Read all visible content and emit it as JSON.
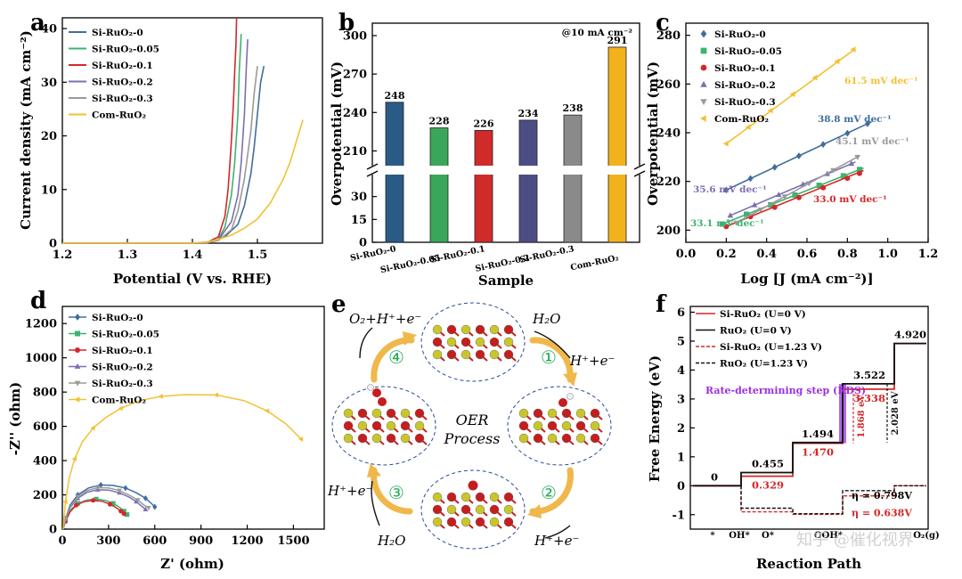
{
  "chart_data": [
    {
      "panel": "a",
      "type": "line",
      "xlabel": "Potential (V vs. RHE)",
      "ylabel": "Current density (mA cm⁻²)",
      "xlim": [
        1.2,
        1.6
      ],
      "ylim": [
        0,
        42
      ],
      "xticks": [
        1.2,
        1.3,
        1.4,
        1.5
      ],
      "yticks": [
        0,
        10,
        20,
        30,
        40
      ],
      "series": [
        {
          "name": "Si-RuO₂-0",
          "color": "#3f6e9e",
          "x": [
            1.2,
            1.4,
            1.43,
            1.45,
            1.47,
            1.48,
            1.49,
            1.495,
            1.5,
            1.505,
            1.51
          ],
          "y": [
            0,
            0,
            0.3,
            1.2,
            3.5,
            7,
            13,
            18,
            24,
            30,
            33
          ]
        },
        {
          "name": "Si-RuO₂-0.05",
          "color": "#3cb371",
          "x": [
            1.2,
            1.42,
            1.44,
            1.45,
            1.46,
            1.465,
            1.47,
            1.472,
            1.475
          ],
          "y": [
            0,
            0,
            0.8,
            3,
            9,
            15,
            24,
            32,
            39
          ]
        },
        {
          "name": "Si-RuO₂-0.1",
          "color": "#d62728",
          "x": [
            1.2,
            1.42,
            1.44,
            1.45,
            1.455,
            1.46,
            1.463,
            1.465,
            1.467,
            1.468
          ],
          "y": [
            0,
            0,
            1.2,
            5,
            10,
            19,
            26,
            32,
            37,
            42
          ]
        },
        {
          "name": "Si-RuO₂-0.2",
          "color": "#7b6fb0",
          "x": [
            1.2,
            1.42,
            1.44,
            1.46,
            1.47,
            1.475,
            1.48,
            1.483,
            1.485
          ],
          "y": [
            0,
            0,
            0.6,
            4,
            9,
            15,
            24,
            33,
            38
          ]
        },
        {
          "name": "Si-RuO₂-0.3",
          "color": "#999999",
          "x": [
            1.2,
            1.42,
            1.44,
            1.46,
            1.47,
            1.48,
            1.49,
            1.495,
            1.5
          ],
          "y": [
            0,
            0,
            0.5,
            2.5,
            6,
            12,
            21,
            28,
            33
          ]
        },
        {
          "name": "Com-RuO₂",
          "color": "#f2c132",
          "x": [
            1.2,
            1.4,
            1.42,
            1.44,
            1.46,
            1.48,
            1.5,
            1.52,
            1.54,
            1.55,
            1.56,
            1.57
          ],
          "y": [
            0,
            0,
            0.2,
            0.7,
            1.5,
            2.8,
            4.5,
            7.5,
            12,
            15,
            19,
            23
          ]
        }
      ]
    },
    {
      "panel": "b",
      "type": "bar",
      "xlabel": "Sample",
      "ylabel": "Overpotential (mV)",
      "annotation": "@10 mA cm⁻²",
      "categories": [
        "Si-RuO₂-0",
        "Si-RuO₂-0.05",
        "Si-RuO₂-0.1",
        "Si-RuO₂-0.2",
        "Si-RuO₂-0.3",
        "Com-RuO₂"
      ],
      "values": [
        248,
        228,
        226,
        234,
        238,
        291
      ],
      "value_labels": [
        "248",
        "228",
        "226",
        "234",
        "238",
        "291"
      ],
      "colors": [
        "#2a5a86",
        "#3aa65a",
        "#d12a2a",
        "#4d4d86",
        "#8a8a8a",
        "#f2b21b"
      ],
      "ylim_upper": [
        195,
        300
      ],
      "ylim_lower": [
        0,
        45
      ],
      "yticks_upper": [
        210,
        240,
        270,
        300
      ],
      "yticks_lower": [
        0,
        15,
        30
      ]
    },
    {
      "panel": "c",
      "type": "scatter",
      "xlabel": "Log [J (mA cm⁻²)]",
      "ylabel": "Overpotential (mV)",
      "xlim": [
        0,
        1.2
      ],
      "ylim": [
        195,
        285
      ],
      "xticks": [
        0.0,
        0.2,
        0.4,
        0.6,
        0.8,
        1.0,
        1.2
      ],
      "yticks": [
        200,
        220,
        240,
        260,
        280
      ],
      "series": [
        {
          "name": "Si-RuO₂-0",
          "color": "#3f6e9e",
          "marker": "diamond",
          "slope": "38.8 mV dec⁻¹",
          "fit": [
            [
              0.2,
              216.5
            ],
            [
              0.92,
              244.5
            ]
          ],
          "x": [
            0.2,
            0.32,
            0.44,
            0.56,
            0.68,
            0.8,
            0.9
          ],
          "y": [
            216.5,
            221.2,
            225.8,
            230.5,
            235.2,
            239.8,
            243.7
          ]
        },
        {
          "name": "Si-RuO₂-0.05",
          "color": "#3cb371",
          "marker": "square",
          "slope": "33.1 mV dec⁻¹",
          "fit": [
            [
              0.18,
              202.5
            ],
            [
              0.88,
              225.5
            ]
          ],
          "x": [
            0.18,
            0.3,
            0.42,
            0.54,
            0.66,
            0.78,
            0.86
          ],
          "y": [
            202.5,
            206.5,
            210.4,
            214.4,
            218.4,
            222.3,
            224.9
          ]
        },
        {
          "name": "Si-RuO₂-0.1",
          "color": "#d62728",
          "marker": "circle",
          "slope": "33.0 mV dec⁻¹",
          "fit": [
            [
              0.2,
              201.5
            ],
            [
              0.88,
              224.5
            ]
          ],
          "x": [
            0.2,
            0.32,
            0.44,
            0.56,
            0.68,
            0.8,
            0.86
          ],
          "y": [
            201.5,
            205.5,
            209.4,
            213.4,
            217.4,
            221.3,
            223.3
          ]
        },
        {
          "name": "Si-RuO₂-0.2",
          "color": "#7b6fb0",
          "marker": "triangle-up",
          "slope": "35.6 mV dec⁻¹",
          "fit": [
            [
              0.22,
              206
            ],
            [
              0.84,
              228
            ]
          ],
          "x": [
            0.22,
            0.34,
            0.46,
            0.58,
            0.7,
            0.82
          ],
          "y": [
            206,
            210.3,
            214.5,
            218.8,
            223.1,
            227.3
          ]
        },
        {
          "name": "Si-RuO₂-0.3",
          "color": "#9a9a9a",
          "marker": "triangle-down",
          "slope": "45.1 mV dec⁻¹",
          "fit": [
            [
              0.25,
              203
            ],
            [
              0.86,
              230.5
            ]
          ],
          "x": [
            0.25,
            0.37,
            0.49,
            0.61,
            0.73,
            0.85
          ],
          "y": [
            203,
            208.4,
            213.8,
            219.2,
            224.6,
            230
          ]
        },
        {
          "name": "Com-RuO₂",
          "color": "#f2c132",
          "marker": "triangle-left",
          "slope": "61.5 mV dec⁻¹",
          "fit": [
            [
              0.2,
              235.5
            ],
            [
              0.84,
              274.5
            ]
          ],
          "x": [
            0.2,
            0.31,
            0.42,
            0.53,
            0.64,
            0.75,
            0.83
          ],
          "y": [
            235.5,
            242.3,
            249.1,
            255.8,
            262.6,
            269.3,
            274.2
          ]
        }
      ]
    },
    {
      "panel": "d",
      "type": "line",
      "xlabel": "Z' (ohm)",
      "ylabel": "-Z'' (ohm)",
      "xlim": [
        0,
        1700
      ],
      "ylim": [
        0,
        1300
      ],
      "xticks": [
        0,
        300,
        600,
        900,
        1200,
        1500
      ],
      "yticks": [
        0,
        200,
        400,
        600,
        800,
        1000,
        1200
      ],
      "series": [
        {
          "name": "Si-RuO₂-0",
          "color": "#3f6e9e",
          "x": [
            5,
            20,
            50,
            100,
            170,
            250,
            330,
            410,
            480,
            540,
            580,
            600
          ],
          "y": [
            0,
            60,
            140,
            200,
            240,
            258,
            255,
            240,
            212,
            180,
            148,
            130
          ]
        },
        {
          "name": "Si-RuO₂-0.05",
          "color": "#3cb371",
          "x": [
            5,
            20,
            50,
            100,
            160,
            220,
            280,
            330,
            370,
            400,
            420
          ],
          "y": [
            0,
            50,
            110,
            150,
            170,
            175,
            168,
            150,
            128,
            105,
            85
          ]
        },
        {
          "name": "Si-RuO₂-0.1",
          "color": "#d62728",
          "x": [
            5,
            20,
            50,
            90,
            140,
            200,
            260,
            310,
            350,
            380,
            400
          ],
          "y": [
            0,
            45,
            100,
            140,
            160,
            168,
            162,
            145,
            125,
            105,
            90
          ]
        },
        {
          "name": "Si-RuO₂-0.2",
          "color": "#7b6fb0",
          "x": [
            5,
            20,
            50,
            100,
            160,
            230,
            300,
            370,
            430,
            480,
            520,
            540
          ],
          "y": [
            0,
            55,
            125,
            180,
            215,
            230,
            228,
            212,
            188,
            160,
            130,
            115
          ]
        },
        {
          "name": "Si-RuO₂-0.3",
          "color": "#9a9a9a",
          "x": [
            5,
            20,
            50,
            100,
            160,
            230,
            300,
            370,
            430,
            490,
            530,
            560
          ],
          "y": [
            0,
            58,
            130,
            190,
            225,
            242,
            240,
            225,
            200,
            170,
            140,
            125
          ]
        },
        {
          "name": "Com-RuO₂",
          "color": "#f2c132",
          "x": [
            5,
            20,
            45,
            80,
            130,
            200,
            280,
            380,
            500,
            640,
            800,
            1000,
            1180,
            1330,
            1450,
            1550
          ],
          "y": [
            0,
            160,
            300,
            410,
            510,
            590,
            650,
            705,
            750,
            775,
            785,
            783,
            750,
            690,
            615,
            525
          ]
        }
      ]
    },
    {
      "panel": "f",
      "type": "line",
      "title": "Rate-determining step (RDS)",
      "xlabel": "Reaction Path",
      "ylabel": "Free Energy (eV)",
      "ylim": [
        -1.5,
        6.2
      ],
      "yticks": [
        -1,
        0,
        1,
        2,
        3,
        4,
        5,
        6
      ],
      "steps": [
        "*",
        "OH*",
        "O*",
        "OOH*",
        "O₂(g)"
      ],
      "series": [
        {
          "name": "Si-RuO₂ (U=0 V)",
          "color": "#d62728",
          "style": "solid",
          "levels": [
            0,
            0.329,
            1.47,
            3.338,
            4.92
          ]
        },
        {
          "name": "RuO₂ (U=0 V)",
          "color": "#111111",
          "style": "solid",
          "levels": [
            0,
            0.455,
            1.494,
            3.522,
            4.92
          ]
        },
        {
          "name": "Si-RuO₂ (U=1.23 V)",
          "color": "#d62728",
          "style": "dashed",
          "levels": [
            0,
            -0.901,
            -0.99,
            -0.352,
            0
          ]
        },
        {
          "name": "RuO₂ (U=1.23 V)",
          "color": "#111111",
          "style": "dashed",
          "levels": [
            0,
            -0.775,
            -0.966,
            -0.168,
            0
          ]
        }
      ],
      "value_labels": {
        "start": "0",
        "black": [
          "0.455",
          "1.494",
          "3.522",
          "4.920"
        ],
        "red": [
          "0.329",
          "1.470",
          "3.338"
        ]
      },
      "rds_labels": [
        "1.868 eV",
        "2.028 eV"
      ],
      "eta_labels": [
        "η = 0.798V",
        "η = 0.638V"
      ],
      "watermark": "知乎 @催化视界"
    }
  ],
  "panels": {
    "a": "a",
    "b": "b",
    "c": "c",
    "d": "d",
    "e": "e",
    "f": "f"
  },
  "cycle": {
    "label_line1": "OER",
    "label_line2": "Process",
    "steps": [
      "①",
      "②",
      "③",
      "④"
    ],
    "labels": {
      "h2o_top": "H₂O",
      "proton_1": "H⁺+e⁻",
      "proton_2": "H⁺+e⁻",
      "proton_3": "H⁺+e⁻",
      "h2o_bottom": "H₂O",
      "o2_release": "O₂+H⁺+e⁻"
    },
    "colors": {
      "ru": "#c9c62c",
      "o": "#c41e1e",
      "h": "#f0f0f0",
      "arrow": "#f0b84b",
      "grey": "#b8b8b8",
      "green": "#22aa55"
    }
  }
}
